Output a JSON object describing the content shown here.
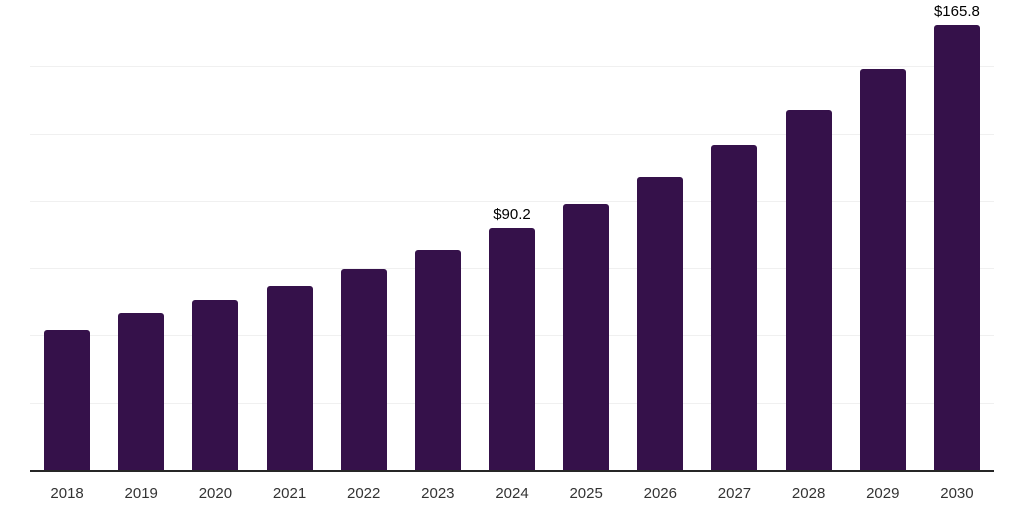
{
  "chart_data": {
    "type": "bar",
    "title": "",
    "xlabel": "",
    "ylabel": "",
    "categories": [
      "2018",
      "2019",
      "2020",
      "2021",
      "2022",
      "2023",
      "2024",
      "2025",
      "2026",
      "2027",
      "2028",
      "2029",
      "2030"
    ],
    "values": [
      52.4,
      58.7,
      63.5,
      68.7,
      75.0,
      82.1,
      90.2,
      99.2,
      109.2,
      121.1,
      134.1,
      149.3,
      165.8
    ],
    "bar_labels": [
      "",
      "",
      "",
      "",
      "",
      "",
      "$90.2",
      "",
      "",
      "",
      "",
      "",
      "$165.8"
    ],
    "ylim": [
      0,
      175
    ],
    "grid_step": 25,
    "grid": "horizontal-only",
    "legend": "none",
    "y_axis_labels_visible": false,
    "colors": {
      "bar": "#35114a",
      "grid": "#f0f0f0",
      "axis": "#262626",
      "tick_label": "#333333",
      "value_label": "#000000",
      "background": "#ffffff"
    }
  }
}
